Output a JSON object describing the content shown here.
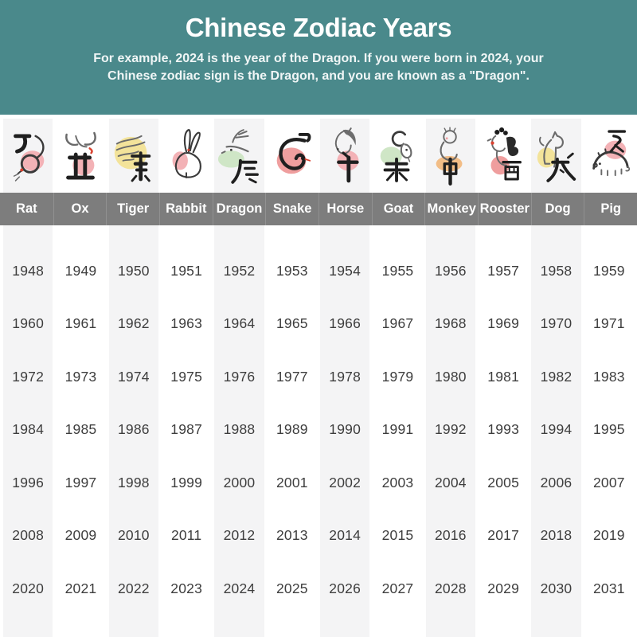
{
  "header": {
    "title": "Chinese Zodiac Years",
    "subtitle_line1": "For example, 2024 is the year of the Dragon. If you were born in 2024, your",
    "subtitle_line2": "Chinese zodiac sign is the Dragon, and you are known as a \"Dragon\".",
    "background_color": "#4a898b",
    "text_color": "#ffffff"
  },
  "zodiac": {
    "band_color": "#7d7d7d",
    "stripe_color": "#f4f4f5",
    "animals": [
      {
        "name": "Rat",
        "hanzi": "子",
        "blob_color": "#f3b2b6"
      },
      {
        "name": "Ox",
        "hanzi": "丑",
        "blob_color": "#f3b2b6"
      },
      {
        "name": "Tiger",
        "hanzi": "寅",
        "blob_color": "#f3e39a"
      },
      {
        "name": "Rabbit",
        "hanzi": "卯",
        "blob_color": "#f3b2b6"
      },
      {
        "name": "Dragon",
        "hanzi": "辰",
        "blob_color": "#cfe6c6"
      },
      {
        "name": "Snake",
        "hanzi": "巳",
        "blob_color": "#ef9e9e"
      },
      {
        "name": "Horse",
        "hanzi": "午",
        "blob_color": "#f3b2b6"
      },
      {
        "name": "Goat",
        "hanzi": "未",
        "blob_color": "#cfe6c6"
      },
      {
        "name": "Monkey",
        "hanzi": "申",
        "blob_color": "#f2bd86"
      },
      {
        "name": "Rooster",
        "hanzi": "酉",
        "blob_color": "#ef9e9e"
      },
      {
        "name": "Dog",
        "hanzi": "戌",
        "blob_color": "#f3e39a"
      },
      {
        "name": "Pig",
        "hanzi": "亥",
        "blob_color": "#f3b2b6"
      }
    ],
    "years": [
      [
        1948,
        1949,
        1950,
        1951,
        1952,
        1953,
        1954,
        1955,
        1956,
        1957,
        1958,
        1959
      ],
      [
        1960,
        1961,
        1962,
        1963,
        1964,
        1965,
        1966,
        1967,
        1968,
        1969,
        1970,
        1971
      ],
      [
        1972,
        1973,
        1974,
        1975,
        1976,
        1977,
        1978,
        1979,
        1980,
        1981,
        1982,
        1983
      ],
      [
        1984,
        1985,
        1986,
        1987,
        1988,
        1989,
        1990,
        1991,
        1992,
        1993,
        1994,
        1995
      ],
      [
        1996,
        1997,
        1998,
        1999,
        2000,
        2001,
        2002,
        2003,
        2004,
        2005,
        2006,
        2007
      ],
      [
        2008,
        2009,
        2010,
        2011,
        2012,
        2013,
        2014,
        2015,
        2016,
        2017,
        2018,
        2019
      ],
      [
        2020,
        2021,
        2022,
        2023,
        2024,
        2025,
        2026,
        2027,
        2028,
        2029,
        2030,
        2031
      ]
    ]
  },
  "chart_data": {
    "type": "table",
    "title": "Chinese Zodiac Years",
    "columns": [
      "Rat",
      "Ox",
      "Tiger",
      "Rabbit",
      "Dragon",
      "Snake",
      "Horse",
      "Goat",
      "Monkey",
      "Rooster",
      "Dog",
      "Pig"
    ],
    "rows": [
      [
        1948,
        1949,
        1950,
        1951,
        1952,
        1953,
        1954,
        1955,
        1956,
        1957,
        1958,
        1959
      ],
      [
        1960,
        1961,
        1962,
        1963,
        1964,
        1965,
        1966,
        1967,
        1968,
        1969,
        1970,
        1971
      ],
      [
        1972,
        1973,
        1974,
        1975,
        1976,
        1977,
        1978,
        1979,
        1980,
        1981,
        1982,
        1983
      ],
      [
        1984,
        1985,
        1986,
        1987,
        1988,
        1989,
        1990,
        1991,
        1992,
        1993,
        1994,
        1995
      ],
      [
        1996,
        1997,
        1998,
        1999,
        2000,
        2001,
        2002,
        2003,
        2004,
        2005,
        2006,
        2007
      ],
      [
        2008,
        2009,
        2010,
        2011,
        2012,
        2013,
        2014,
        2015,
        2016,
        2017,
        2018,
        2019
      ],
      [
        2020,
        2021,
        2022,
        2023,
        2024,
        2025,
        2026,
        2027,
        2028,
        2029,
        2030,
        2031
      ]
    ]
  }
}
